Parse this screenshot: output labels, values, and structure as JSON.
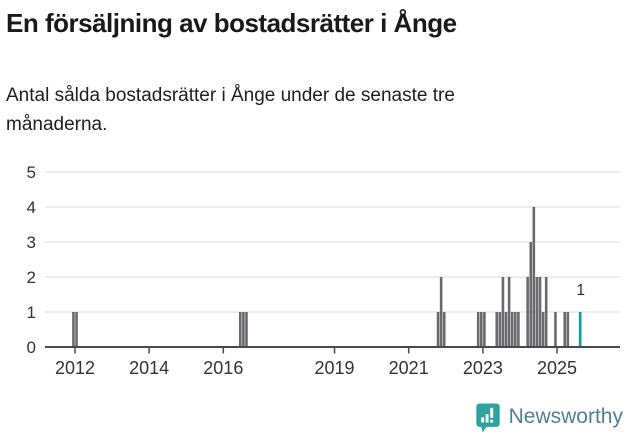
{
  "header": {
    "title": "En försäljning av bostadsrätter i Ånge",
    "subtitle": "Antal sålda bostadsrätter i Ånge under de senaste tre månaderna."
  },
  "chart_data": {
    "type": "bar",
    "title": "En försäljning av bostadsrätter i Ånge",
    "subtitle": "Antal sålda bostadsrätter i Ånge under de senaste tre månaderna.",
    "xlabel": "",
    "ylabel": "",
    "ylim": [
      0,
      5
    ],
    "yticks": [
      0,
      1,
      2,
      3,
      4,
      5
    ],
    "xticks": [
      2012,
      2014,
      2016,
      2019,
      2021,
      2023,
      2025
    ],
    "grid": "horizontal",
    "highlight_label": "1",
    "points": [
      {
        "month": "2011-12",
        "value": 1
      },
      {
        "month": "2012-01",
        "value": 1
      },
      {
        "month": "2016-06",
        "value": 1
      },
      {
        "month": "2016-07",
        "value": 1
      },
      {
        "month": "2016-08",
        "value": 1
      },
      {
        "month": "2021-10",
        "value": 1
      },
      {
        "month": "2021-11",
        "value": 2
      },
      {
        "month": "2021-12",
        "value": 1
      },
      {
        "month": "2022-11",
        "value": 1
      },
      {
        "month": "2022-12",
        "value": 1
      },
      {
        "month": "2023-01",
        "value": 1
      },
      {
        "month": "2023-05",
        "value": 1
      },
      {
        "month": "2023-06",
        "value": 1
      },
      {
        "month": "2023-07",
        "value": 2
      },
      {
        "month": "2023-08",
        "value": 1
      },
      {
        "month": "2023-09",
        "value": 2
      },
      {
        "month": "2023-10",
        "value": 1
      },
      {
        "month": "2023-11",
        "value": 1
      },
      {
        "month": "2023-12",
        "value": 1
      },
      {
        "month": "2024-03",
        "value": 2
      },
      {
        "month": "2024-04",
        "value": 3
      },
      {
        "month": "2024-05",
        "value": 4
      },
      {
        "month": "2024-06",
        "value": 2
      },
      {
        "month": "2024-07",
        "value": 2
      },
      {
        "month": "2024-08",
        "value": 1
      },
      {
        "month": "2024-09",
        "value": 2
      },
      {
        "month": "2024-12",
        "value": 1
      },
      {
        "month": "2025-03",
        "value": 1
      },
      {
        "month": "2025-04",
        "value": 1
      },
      {
        "month": "2025-08",
        "value": 1,
        "highlight": true
      }
    ],
    "colors": {
      "bar": "#6a6a6d",
      "highlight": "#0f9c9c",
      "grid": "#e2e2e2",
      "axis": "#4a4a4a",
      "tick_text": "#333333",
      "annotation_text": "#2b2b2b"
    }
  },
  "footer": {
    "brand": "Newsworthy",
    "brand_color": "#2fa39c"
  }
}
